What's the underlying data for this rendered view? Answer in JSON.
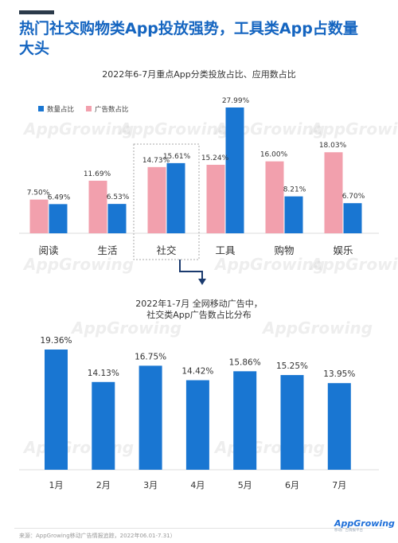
{
  "headline": "热门社交购物类App投放强势，工具类App占数量大头",
  "chart_data": [
    {
      "type": "bar",
      "title": "2022年6-7月重点App分类投放占比、应用数占比",
      "categories": [
        "阅读",
        "生活",
        "社交",
        "工具",
        "购物",
        "娱乐"
      ],
      "highlighted_category": "社交",
      "legend_position": "top-left",
      "series": [
        {
          "name": "数量占比",
          "values": [
            6.49,
            6.53,
            15.61,
            27.99,
            8.21,
            6.7
          ],
          "labels": [
            "6.49%",
            "6.53%",
            "15.61%",
            "27.99%",
            "8.21%",
            "6.70%"
          ]
        },
        {
          "name": "广告数占比",
          "values": [
            7.5,
            11.69,
            14.73,
            15.24,
            16.0,
            18.03
          ],
          "labels": [
            "7.50%",
            "11.69%",
            "14.73%",
            "15.24%",
            "16.00%",
            "18.03%"
          ]
        }
      ]
    },
    {
      "type": "bar",
      "title_line1": "2022年1-7月 全网移动广告中，",
      "title_line2": "社交类App广告数占比分布",
      "categories": [
        "1月",
        "2月",
        "3月",
        "4月",
        "5月",
        "6月",
        "7月"
      ],
      "values": [
        19.36,
        14.13,
        16.75,
        14.42,
        15.86,
        15.25,
        13.95
      ],
      "labels": [
        "19.36%",
        "14.13%",
        "16.75%",
        "14.42%",
        "15.86%",
        "15.25%",
        "13.95%"
      ]
    }
  ],
  "colors": {
    "primary": "#1976d2",
    "secondary": "#f2a0ad",
    "accent_dark": "#1a3a6e",
    "headline": "#1565c0"
  },
  "footer": {
    "source": "来源：AppGrowing移动广告情报追踪，2022年06.01-7.31）",
    "logo": "AppGrowing",
    "logo_sub": "移动广告情报平台"
  },
  "watermark": "AppGrowing"
}
